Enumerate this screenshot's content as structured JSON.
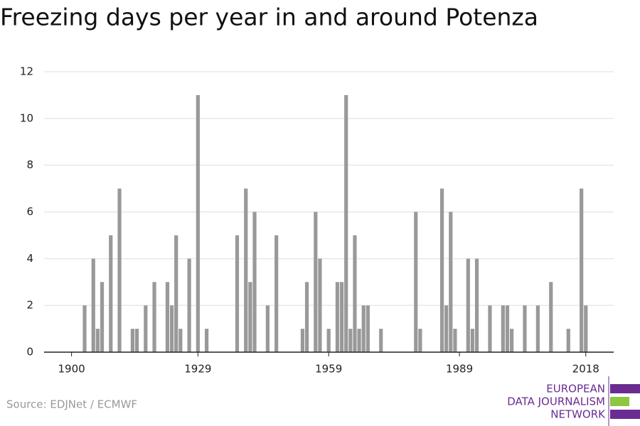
{
  "chart_data": {
    "type": "bar",
    "title": "Freezing days per year in and around Potenza",
    "x": [
      1903,
      1905,
      1906,
      1907,
      1909,
      1911,
      1914,
      1915,
      1917,
      1919,
      1922,
      1923,
      1924,
      1925,
      1927,
      1929,
      1931,
      1938,
      1940,
      1941,
      1942,
      1945,
      1947,
      1953,
      1954,
      1956,
      1957,
      1959,
      1961,
      1962,
      1963,
      1964,
      1965,
      1966,
      1967,
      1968,
      1971,
      1979,
      1980,
      1985,
      1986,
      1987,
      1988,
      1991,
      1992,
      1993,
      1996,
      1999,
      2000,
      2001,
      2004,
      2007,
      2010,
      2014,
      2017,
      2018
    ],
    "values": [
      2,
      4,
      1,
      3,
      5,
      7,
      1,
      1,
      2,
      3,
      3,
      2,
      5,
      1,
      4,
      11,
      1,
      5,
      7,
      3,
      6,
      2,
      5,
      1,
      3,
      6,
      4,
      1,
      3,
      3,
      11,
      1,
      5,
      1,
      2,
      2,
      1,
      6,
      1,
      7,
      2,
      6,
      1,
      4,
      1,
      4,
      2,
      2,
      2,
      1,
      2,
      2,
      3,
      1,
      7,
      2
    ],
    "color": "#999999",
    "xlim": [
      1893.7,
      2024.4
    ],
    "xticks": [
      1900,
      1929,
      1959,
      1989,
      2018
    ],
    "ylim": [
      0,
      12
    ],
    "yticks": [
      0,
      2,
      4,
      6,
      8,
      10,
      12
    ],
    "grid": true,
    "source": "Source: EDJNet / ECMWF",
    "logo": [
      "EUROPEAN",
      "DATA JOURNALISM",
      "NETWORK"
    ]
  }
}
